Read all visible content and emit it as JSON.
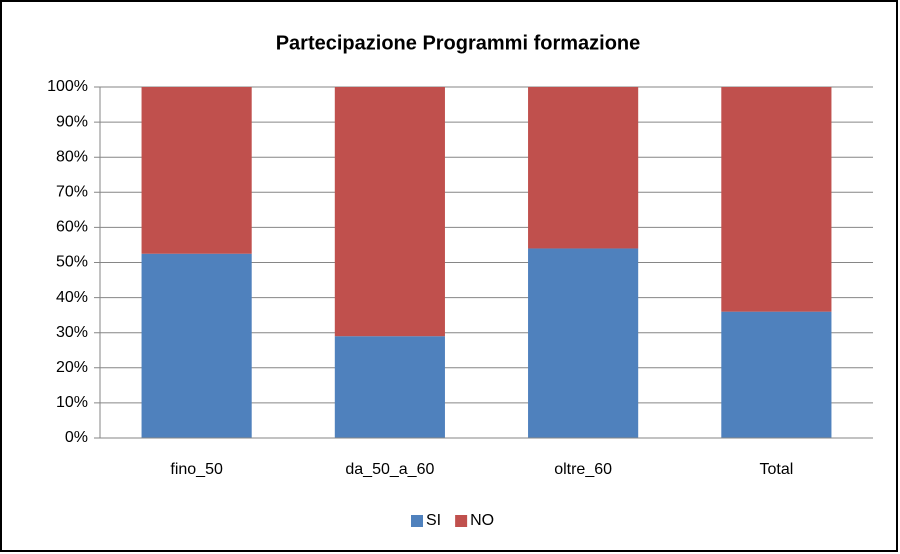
{
  "chart_data": {
    "type": "stacked_bar",
    "title": "Partecipazione Programmi formazione",
    "categories": [
      "fino_50",
      "da_50_a_60",
      "oltre_60",
      "Total"
    ],
    "series": [
      {
        "name": "SI",
        "color": "#4f81bd",
        "values": [
          52.5,
          29,
          54,
          36
        ]
      },
      {
        "name": "NO",
        "color": "#c0504d",
        "values": [
          47.5,
          71,
          46,
          64
        ]
      }
    ],
    "ylim": [
      0,
      100
    ],
    "yticks": [
      {
        "value": 0,
        "label": "0%"
      },
      {
        "value": 10,
        "label": "10%"
      },
      {
        "value": 20,
        "label": "20%"
      },
      {
        "value": 30,
        "label": "30%"
      },
      {
        "value": 40,
        "label": "40%"
      },
      {
        "value": 50,
        "label": "50%"
      },
      {
        "value": 60,
        "label": "60%"
      },
      {
        "value": 70,
        "label": "70%"
      },
      {
        "value": 80,
        "label": "80%"
      },
      {
        "value": 90,
        "label": "90%"
      },
      {
        "value": 100,
        "label": "100%"
      }
    ],
    "grid": true,
    "legend": "bottom"
  }
}
